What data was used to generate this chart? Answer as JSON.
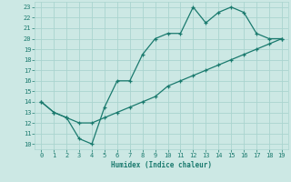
{
  "upper_x": [
    0,
    1,
    2,
    3,
    4,
    5,
    6,
    7,
    8,
    9,
    10,
    11,
    12,
    13,
    14,
    15,
    16,
    17,
    18,
    19
  ],
  "upper_y": [
    14,
    13,
    12.5,
    10.5,
    10,
    13.5,
    16,
    16,
    18.5,
    20,
    20.5,
    20.5,
    23,
    21.5,
    22.5,
    23,
    22.5,
    20.5,
    20,
    20
  ],
  "lower_x": [
    0,
    1,
    2,
    3,
    4,
    5,
    6,
    7,
    8,
    9,
    10,
    11,
    12,
    13,
    14,
    15,
    16,
    17,
    18,
    19
  ],
  "lower_y": [
    14,
    13,
    12.5,
    12,
    12,
    12.5,
    13,
    13.5,
    14,
    14.5,
    15.5,
    16,
    16.5,
    17,
    17.5,
    18,
    18.5,
    19,
    19.5,
    20
  ],
  "line_color": "#1a7a6e",
  "bg_color": "#cce8e4",
  "grid_color": "#aad4cf",
  "xlabel": "Humidex (Indice chaleur)",
  "xlim": [
    -0.5,
    19.5
  ],
  "ylim": [
    9.5,
    23.5
  ],
  "xticks": [
    0,
    1,
    2,
    3,
    4,
    5,
    6,
    7,
    8,
    9,
    10,
    11,
    12,
    13,
    14,
    15,
    16,
    17,
    18,
    19
  ],
  "yticks": [
    10,
    11,
    12,
    13,
    14,
    15,
    16,
    17,
    18,
    19,
    20,
    21,
    22,
    23
  ]
}
